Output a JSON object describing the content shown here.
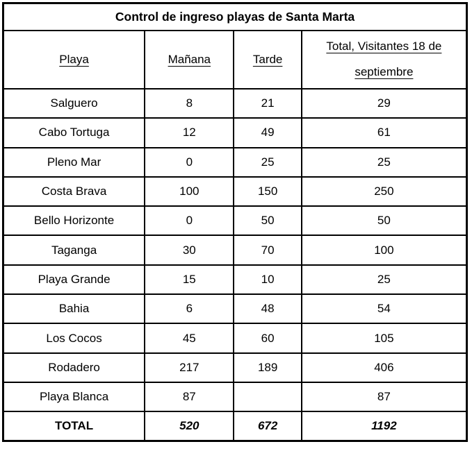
{
  "table": {
    "title": "Control de ingreso playas de Santa Marta",
    "columns": {
      "playa": "Playa",
      "manana": "Mañana",
      "tarde": "Tarde",
      "total": "Total, Visitantes 18 de septiembre"
    },
    "rows": [
      [
        "Salguero",
        "8",
        "21",
        "29"
      ],
      [
        "Cabo Tortuga",
        "12",
        "49",
        "61"
      ],
      [
        "Pleno Mar",
        "0",
        "25",
        "25"
      ],
      [
        "Costa Brava",
        "100",
        "150",
        "250"
      ],
      [
        "Bello Horizonte",
        "0",
        "50",
        "50"
      ],
      [
        "Taganga",
        "30",
        "70",
        "100"
      ],
      [
        "Playa Grande",
        "15",
        "10",
        "25"
      ],
      [
        "Bahia",
        "6",
        "48",
        "54"
      ],
      [
        "Los Cocos",
        "45",
        "60",
        "105"
      ],
      [
        "Rodadero",
        "217",
        "189",
        "406"
      ],
      [
        "Playa Blanca",
        "87",
        "",
        "87"
      ]
    ],
    "total_row": [
      "TOTAL",
      "520",
      "672",
      "1192"
    ]
  },
  "colors": {
    "border": "#000000",
    "background": "#ffffff",
    "text": "#000000"
  }
}
